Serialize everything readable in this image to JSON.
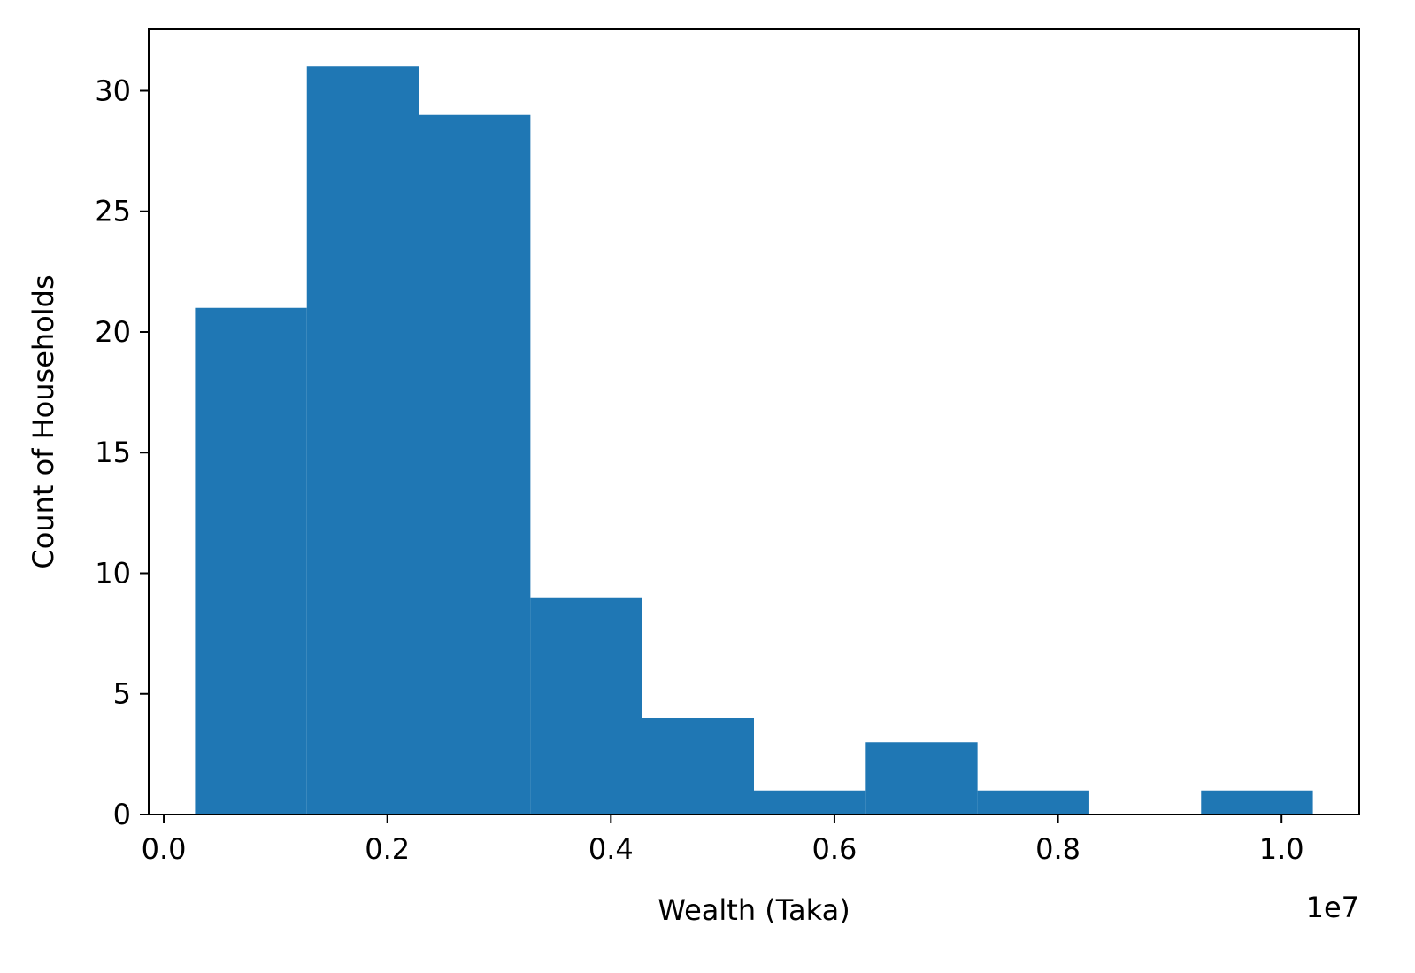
{
  "chart_data": {
    "type": "bar",
    "subtype": "histogram",
    "title": "",
    "xlabel": "Wealth (Taka)",
    "ylabel": "Count of Households",
    "x_offset_label": "1e7",
    "bin_edges": [
      0.028,
      0.128,
      0.228,
      0.328,
      0.428,
      0.528,
      0.628,
      0.728,
      0.828,
      0.928,
      1.028
    ],
    "values": [
      21,
      31,
      29,
      9,
      4,
      1,
      3,
      1,
      0,
      1
    ],
    "x_unit_scale": "1e7",
    "xlim": [
      -0.0135,
      1.0695
    ],
    "ylim": [
      0,
      32.55
    ],
    "xticks": [
      0.0,
      0.2,
      0.4,
      0.6,
      0.8,
      1.0
    ],
    "xtick_labels": [
      "0.0",
      "0.2",
      "0.4",
      "0.6",
      "0.8",
      "1.0"
    ],
    "yticks": [
      0,
      5,
      10,
      15,
      20,
      25,
      30
    ],
    "ytick_labels": [
      "0",
      "5",
      "10",
      "15",
      "20",
      "25",
      "30"
    ],
    "grid": false,
    "legend": "none",
    "bar_color": "#1f77b4"
  }
}
